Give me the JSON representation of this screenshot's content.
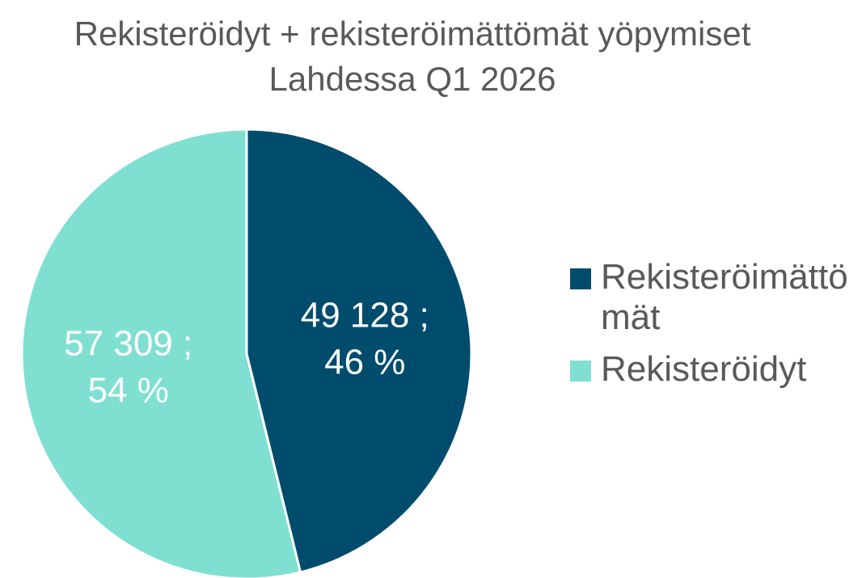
{
  "chart_data": {
    "type": "pie",
    "title": "Rekisteröidyt + rekisteröimättömät yöpymiset Lahdessa Q1 2026",
    "categories": [
      "Rekisteröimättömät",
      "Rekisteröidyt"
    ],
    "values": [
      49128,
      57309
    ],
    "value_labels": [
      "49 128 ; 46 %",
      "57 309 ; 54 %"
    ],
    "colors": [
      "#004c6d",
      "#7fe0d2"
    ],
    "legend": "right"
  }
}
